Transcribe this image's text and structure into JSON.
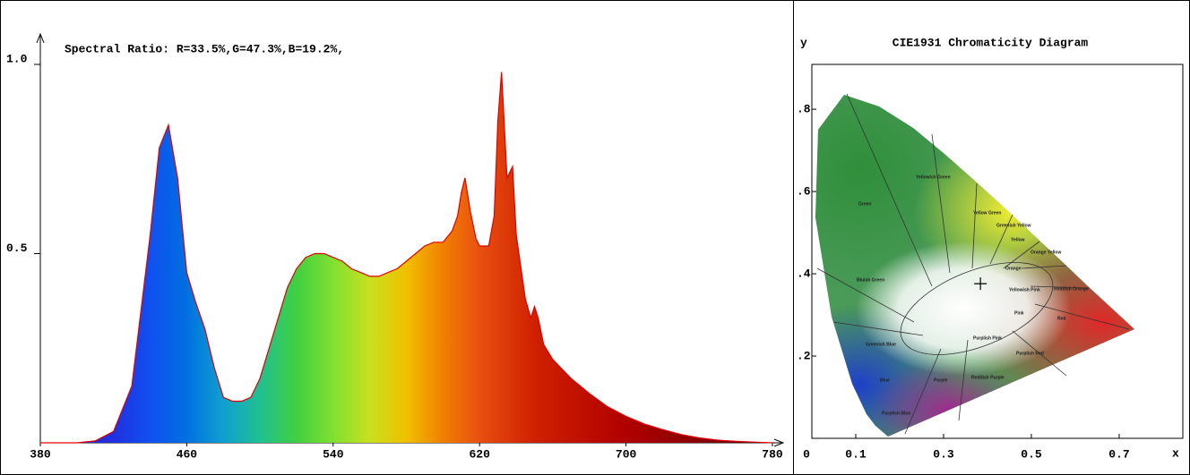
{
  "chart_data": [
    {
      "type": "area",
      "title": "Spectral Ratio:  R=33.5%,G=47.3%,B=19.2%,",
      "x": [
        380,
        400,
        410,
        420,
        430,
        440,
        445,
        450,
        455,
        460,
        465,
        470,
        475,
        480,
        485,
        490,
        495,
        500,
        505,
        510,
        515,
        520,
        525,
        530,
        535,
        540,
        545,
        550,
        555,
        560,
        565,
        570,
        575,
        580,
        585,
        590,
        595,
        600,
        605,
        608,
        610,
        612,
        615,
        618,
        620,
        625,
        628,
        630,
        632,
        635,
        638,
        640,
        645,
        648,
        650,
        652,
        655,
        660,
        670,
        680,
        690,
        700,
        710,
        720,
        730,
        740,
        750,
        760,
        770,
        780
      ],
      "values": [
        0,
        0,
        0.005,
        0.03,
        0.15,
        0.55,
        0.78,
        0.84,
        0.7,
        0.45,
        0.37,
        0.3,
        0.2,
        0.12,
        0.11,
        0.11,
        0.12,
        0.17,
        0.25,
        0.33,
        0.41,
        0.46,
        0.49,
        0.5,
        0.5,
        0.49,
        0.48,
        0.46,
        0.45,
        0.44,
        0.44,
        0.45,
        0.46,
        0.48,
        0.5,
        0.52,
        0.53,
        0.53,
        0.56,
        0.6,
        0.66,
        0.7,
        0.61,
        0.54,
        0.52,
        0.52,
        0.6,
        0.85,
        0.98,
        0.7,
        0.73,
        0.55,
        0.38,
        0.33,
        0.36,
        0.33,
        0.26,
        0.22,
        0.17,
        0.13,
        0.095,
        0.07,
        0.05,
        0.035,
        0.022,
        0.013,
        0.007,
        0.004,
        0.002,
        0
      ],
      "color": "#e00000",
      "xlim": [
        380,
        780
      ],
      "xticks": [
        380,
        460,
        540,
        620,
        700,
        780
      ],
      "ylim": [
        0,
        1
      ],
      "yticks": [
        {
          "value": 1,
          "label": "1.0"
        },
        0.5
      ]
    },
    {
      "type": "scatter",
      "title": "CIE1931 Chromaticity Diagram",
      "xlabel": "x",
      "ylabel": "y",
      "x": [
        0.384
      ],
      "values": [
        0.376
      ],
      "color": "#000000",
      "xlim": [
        0,
        0.845
      ],
      "xticks": [
        0,
        0.1,
        0.3,
        0.5,
        0.7
      ],
      "ylim": [
        0,
        0.909
      ],
      "yticks": [
        {
          "value": 0.2,
          "label": ".2"
        },
        {
          "value": 0.4,
          "label": ".4"
        },
        {
          "value": 0.6,
          "label": ".6"
        },
        {
          "value": 0.8,
          "label": ".8"
        }
      ],
      "region_labels": [
        "Green",
        "Yellowish Green",
        "Yellow Green",
        "Greenish Yellow",
        "Yellow",
        "Orange Yellow",
        "Orange",
        "Reddish Orange",
        "Red",
        "Pink",
        "Yellowish Pink",
        "Purplish Pink",
        "Purplish Red",
        "Reddish Purple",
        "Purple",
        "Bluish Green",
        "Greenish Blue",
        "Blue",
        "Purplish Blue"
      ]
    }
  ]
}
